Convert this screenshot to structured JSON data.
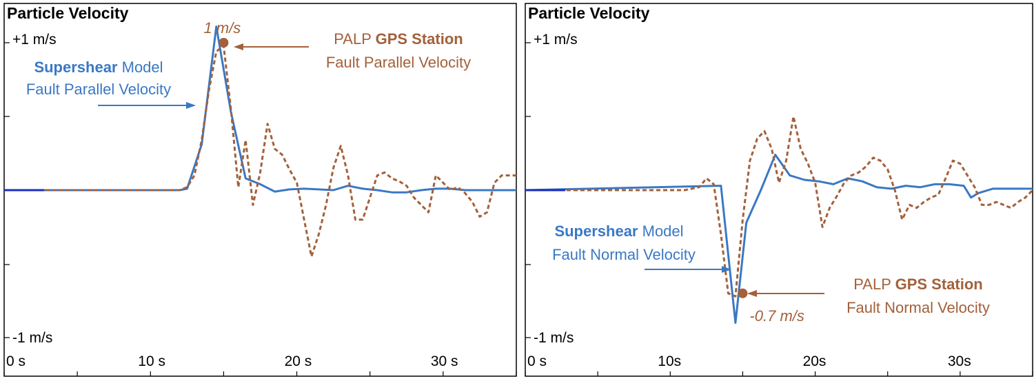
{
  "colors": {
    "model": "#3a78c4",
    "gps": "#a3603a",
    "frame": "#000000"
  },
  "chart_data": [
    {
      "type": "line",
      "title": "Particle Velocity",
      "ylim": [
        -1,
        1
      ],
      "xlim": [
        0,
        35
      ],
      "y_tick_labels": [
        "+1 m/s",
        "-1 m/s"
      ],
      "x_ticks": [
        {
          "value": 0,
          "label": "0 s"
        },
        {
          "value": 10,
          "label": "10 s"
        },
        {
          "value": 20,
          "label": "20 s"
        },
        {
          "value": 30,
          "label": "30 s"
        }
      ],
      "series": [
        {
          "style": "solid",
          "x": [
            0,
            12,
            12.5,
            13.5,
            14.5,
            15.5,
            16.5,
            17.5,
            18.5,
            19.5,
            20.5,
            21.5,
            22.5,
            23.5,
            24.5,
            25.5,
            26.5,
            27.5,
            28.5,
            29.5,
            30.5,
            31.5,
            32.5,
            33.5,
            35
          ],
          "y": [
            0,
            0,
            0.01,
            0.31,
            1.11,
            0.53,
            0.08,
            0.04,
            -0.01,
            0.005,
            0.01,
            0.005,
            0.0,
            0.03,
            0.01,
            0.0,
            -0.015,
            -0.015,
            0.0,
            0.01,
            0.01,
            0.0,
            0.0,
            0.0,
            0.0
          ]
        },
        {
          "style": "dashed",
          "x": [
            0,
            12,
            12.5,
            13,
            13.5,
            14,
            14.5,
            15,
            15.5,
            16,
            16.5,
            17,
            17.5,
            18,
            18.5,
            19,
            19.5,
            20,
            20.5,
            21,
            21.5,
            22,
            22.5,
            23,
            23.5,
            24,
            24.5,
            25,
            25.5,
            26,
            26.5,
            27,
            27.5,
            28,
            28.5,
            29,
            29.5,
            30,
            30.5,
            31,
            31.5,
            32,
            32.5,
            33,
            33.5,
            34,
            34.5,
            35
          ],
          "y": [
            0,
            0,
            0.02,
            0.1,
            0.34,
            0.68,
            0.94,
            0.98,
            0.55,
            0.02,
            0.34,
            -0.1,
            0.12,
            0.45,
            0.28,
            0.24,
            0.14,
            0.05,
            -0.2,
            -0.45,
            -0.3,
            -0.1,
            0.15,
            0.3,
            0.1,
            -0.2,
            -0.2,
            -0.05,
            0.1,
            0.12,
            0.08,
            0.06,
            0.03,
            -0.05,
            -0.1,
            -0.15,
            0.1,
            0.05,
            0.0,
            0.02,
            -0.02,
            -0.08,
            -0.18,
            -0.15,
            0.05,
            0.1,
            0.1,
            0.1
          ]
        }
      ],
      "marker": {
        "x": 15,
        "y": 1.0,
        "label": "1 m/s"
      },
      "annotations": {
        "model_bold": "Supershear",
        "model_rest": " Model",
        "model_line2": "Fault Parallel Velocity",
        "gps_prefix": "PALP ",
        "gps_bold": "GPS Station",
        "gps_line2": "Fault Parallel Velocity"
      }
    },
    {
      "type": "line",
      "title": "Particle Velocity",
      "ylim": [
        -1,
        1
      ],
      "xlim": [
        0,
        35
      ],
      "y_tick_labels": [
        "+1 m/s",
        "-1 m/s"
      ],
      "x_ticks": [
        {
          "value": 0,
          "label": "0 s"
        },
        {
          "value": 10,
          "label": "10s"
        },
        {
          "value": 20,
          "label": "20s"
        },
        {
          "value": 30,
          "label": "30s"
        }
      ],
      "series": [
        {
          "style": "solid",
          "x": [
            0,
            13.5,
            14.5,
            15.25,
            16.25,
            17.25,
            18.25,
            19.25,
            20.25,
            21.25,
            22.25,
            23.25,
            24.25,
            25.25,
            26.25,
            27.25,
            28.25,
            29.25,
            30.25,
            30.75,
            31.25,
            32.25,
            33.25,
            35
          ],
          "y": [
            0,
            0.03,
            -0.9,
            -0.22,
            0.0,
            0.24,
            0.1,
            0.07,
            0.06,
            0.04,
            0.08,
            0.06,
            0.02,
            0.01,
            0.03,
            0.02,
            0.04,
            0.04,
            0.03,
            -0.05,
            -0.02,
            0.01,
            0.01,
            0.01
          ]
        },
        {
          "style": "dashed",
          "x": [
            0,
            11,
            12,
            12.5,
            13,
            13.5,
            14,
            14.5,
            15,
            15.5,
            16,
            16.5,
            17,
            17.5,
            18,
            18.5,
            19,
            19.5,
            20,
            20.5,
            21,
            21.5,
            22,
            22.5,
            23,
            23.5,
            24,
            24.5,
            25,
            25.5,
            26,
            26.5,
            27,
            27.5,
            28,
            28.5,
            29,
            29.5,
            30,
            30.5,
            31,
            31.5,
            32,
            32.5,
            33,
            33.5,
            34,
            34.5,
            35
          ],
          "y": [
            0,
            0,
            0.02,
            0.08,
            0.04,
            -0.3,
            -0.7,
            -0.72,
            -0.2,
            0.2,
            0.35,
            0.4,
            0.28,
            0.05,
            0.2,
            0.5,
            0.28,
            0.18,
            0.05,
            -0.25,
            -0.12,
            -0.04,
            0.05,
            0.1,
            0.12,
            0.16,
            0.22,
            0.2,
            0.14,
            0.0,
            -0.2,
            -0.1,
            -0.12,
            -0.08,
            -0.05,
            -0.03,
            0.08,
            0.2,
            0.18,
            0.1,
            0.02,
            -0.1,
            -0.1,
            -0.08,
            -0.1,
            -0.12,
            -0.08,
            -0.05,
            0.0
          ]
        }
      ],
      "marker": {
        "x": 15,
        "y": -0.7,
        "label": "-0.7 m/s"
      },
      "annotations": {
        "model_bold": "Supershear",
        "model_rest": " Model",
        "model_line2": "Fault Normal Velocity",
        "gps_prefix": "PALP ",
        "gps_bold": "GPS Station",
        "gps_line2": "Fault Normal Velocity"
      }
    }
  ]
}
